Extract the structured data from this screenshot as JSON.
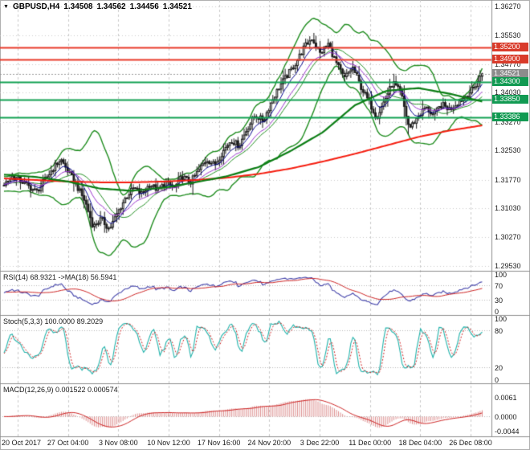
{
  "header": {
    "symbol": "GBPUSD,H4",
    "open": "1.34508",
    "high": "1.34562",
    "low": "1.34456",
    "close": "1.34521",
    "dropdown_icon": "▼"
  },
  "y_axis": {
    "price_min": 1.294,
    "price_max": 1.3644,
    "ticks": [
      "1.36270",
      "1.35530",
      "1.34770",
      "1.34030",
      "1.33270",
      "1.32530",
      "1.31770",
      "1.31030",
      "1.30270",
      "1.29530"
    ]
  },
  "price_tags": [
    {
      "label": "1.35200",
      "price": 1.352,
      "color": "#d93b2b",
      "type": "resistance"
    },
    {
      "label": "1.34900",
      "price": 1.349,
      "color": "#d93b2b",
      "type": "resistance"
    },
    {
      "label": "1.34521",
      "price": 1.34521,
      "color": "#8c8c8c",
      "type": "current"
    },
    {
      "label": "1.34300",
      "price": 1.343,
      "color": "#119a52",
      "type": "support"
    },
    {
      "label": "1.33850",
      "price": 1.3385,
      "color": "#119a52",
      "type": "support"
    },
    {
      "label": "1.33386",
      "price": 1.33386,
      "color": "#119a52",
      "type": "support"
    }
  ],
  "x_axis": {
    "labels": [
      "20 Oct 2017",
      "27 Oct 04:00",
      "3 Nov 08:00",
      "10 Nov 12:00",
      "17 Nov 16:00",
      "24 Nov 20:00",
      "3 Dec 22:00",
      "11 Dec 00:00",
      "18 Dec 04:00",
      "26 Dec 08:00"
    ]
  },
  "panels": {
    "rsi": {
      "label": "RSI(14) 68.9321 ->MA(18) 56.5941",
      "ticks": [
        "100",
        "70",
        "30",
        "0"
      ],
      "levels": [
        70,
        30
      ]
    },
    "stoch": {
      "label": "Stoch(5,3,3) 100.0000 89.2029",
      "ticks": [
        "100",
        "80",
        "20",
        "0"
      ],
      "levels": [
        80,
        20
      ]
    },
    "macd": {
      "label": "MACD(12,26,9) 0.001522 0.000574",
      "ticks": [
        "0.0061",
        "0.0000",
        "-0.0044"
      ]
    }
  },
  "colors": {
    "candle": "#1a1a1a",
    "bb": "#1e8c1e",
    "ma_red": "#f51d0f",
    "ma_green": "#0b7d14",
    "ema_fast": "#00008b",
    "ema_mid": "#9932cc",
    "res_line": "#e83b2a",
    "sup_line": "#11a052",
    "current_line": "#9a9a9a",
    "rsi": "#4343aa",
    "rsi_ma": "#cc2222",
    "stoch_k": "#20b2aa",
    "stoch_d": "#cc2222",
    "macd_hist": "#dc8c8c",
    "macd_sig": "#cc2222",
    "grid_v": "#c9c9c9",
    "grid_h": "#cccccc",
    "border": "#8c8c8c",
    "level_dots": "#b8b8b8"
  },
  "chart_data": {
    "type": "candlestick",
    "symbol": "GBPUSD",
    "timeframe": "H4",
    "ohlc_current": {
      "open": 1.34508,
      "high": 1.34562,
      "low": 1.34456,
      "close": 1.34521
    },
    "candles": 234,
    "close_path": [
      1.3165,
      1.3185,
      1.3175,
      1.316,
      1.3145,
      1.3175,
      1.3205,
      1.323,
      1.3195,
      1.316,
      1.312,
      1.3055,
      1.3075,
      1.3048,
      1.309,
      1.313,
      1.3155,
      1.314,
      1.3165,
      1.315,
      1.317,
      1.3155,
      1.3185,
      1.317,
      1.32,
      1.323,
      1.3215,
      1.325,
      1.328,
      1.3265,
      1.331,
      1.3345,
      1.333,
      1.338,
      1.342,
      1.345,
      1.348,
      1.352,
      1.3545,
      1.3505,
      1.353,
      1.348,
      1.344,
      1.347,
      1.342,
      1.338,
      1.334,
      1.3385,
      1.343,
      1.34,
      1.331,
      1.3338,
      1.3365,
      1.3345,
      1.3372,
      1.336,
      1.3378,
      1.3395,
      1.3415,
      1.34521
    ],
    "ma_red_path": [
      1.318,
      1.3176,
      1.3172,
      1.317,
      1.317,
      1.3172,
      1.3176,
      1.3182,
      1.3192,
      1.3206,
      1.3224,
      1.3244,
      1.3266,
      1.3288,
      1.3305,
      1.3318
    ],
    "ma_green_path": [
      1.319,
      1.3184,
      1.3172,
      1.3154,
      1.3148,
      1.3156,
      1.317,
      1.3186,
      1.321,
      1.3252,
      1.33,
      1.337,
      1.3408,
      1.3415,
      1.34,
      1.338
    ],
    "horizontal_lines": {
      "resistance": [
        1.352,
        1.349
      ],
      "support": [
        1.343,
        1.3385,
        1.33386
      ],
      "current": 1.34521
    },
    "bollinger": {
      "period": 20,
      "deviation": 2.6
    },
    "indicators": {
      "rsi": {
        "name": "RSI(14)",
        "value": 68.9321,
        "ma_name": "MA(18)",
        "ma_value": 56.5941
      },
      "stoch": {
        "name": "Stoch(5,3,3)",
        "main": 100.0,
        "signal": 89.2029
      },
      "macd": {
        "name": "MACD(12,26,9)",
        "value": 0.001522,
        "signal": 0.000574
      }
    }
  }
}
